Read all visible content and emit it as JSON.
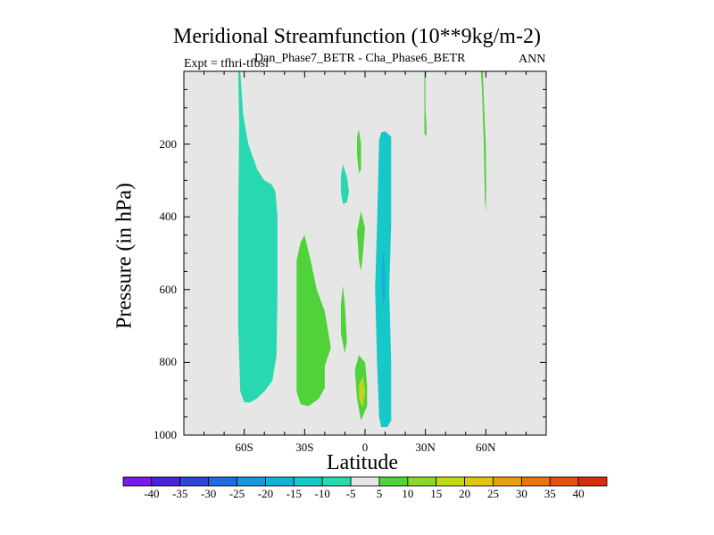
{
  "chart_data": {
    "type": "contour",
    "title": "Meridional Streamfunction (10**9kg/m-2)",
    "subtitle": "Dan_Phase7_BETR - Cha_Phase6_BETR",
    "expt_label": "Expt = tfhri-tfbsi",
    "season": "ANN",
    "xlabel": "Latitude",
    "ylabel": "Pressure (in hPa)",
    "xlim": [
      -90,
      90
    ],
    "ylim": [
      1000,
      0
    ],
    "x_ticks": [
      {
        "value": -60,
        "label": "60S"
      },
      {
        "value": -30,
        "label": "30S"
      },
      {
        "value": 0,
        "label": "0"
      },
      {
        "value": 30,
        "label": "30N"
      },
      {
        "value": 60,
        "label": "60N"
      }
    ],
    "y_ticks": [
      {
        "value": 200,
        "label": "200"
      },
      {
        "value": 400,
        "label": "400"
      },
      {
        "value": 600,
        "label": "600"
      },
      {
        "value": 800,
        "label": "800"
      },
      {
        "value": 1000,
        "label": "1000"
      }
    ],
    "background_color": "#e6e6e6",
    "colorbar": {
      "labels": [
        "-40",
        "-35",
        "-30",
        "-25",
        "-20",
        "-15",
        "-10",
        "-5",
        "5",
        "10",
        "15",
        "20",
        "25",
        "30",
        "35",
        "40"
      ],
      "colors": [
        "#7a18e8",
        "#4a22d8",
        "#2d46d6",
        "#1e6ce0",
        "#1796dc",
        "#12b2d8",
        "#16c8c8",
        "#28d8b0",
        "#e6e6e6",
        "#4fd23a",
        "#8ad82a",
        "#c2d61a",
        "#e0c410",
        "#e8a010",
        "#e8780e",
        "#e45010",
        "#d82e10"
      ]
    },
    "regions": [
      {
        "name": "sh-high-lat-cell",
        "color": "#28d8b0",
        "points": [
          [
            -62,
            0
          ],
          [
            -60.5,
            120
          ],
          [
            -58,
            200
          ],
          [
            -53.5,
            270
          ],
          [
            -50,
            300
          ],
          [
            -46.5,
            310
          ],
          [
            -44.5,
            330
          ],
          [
            -43.5,
            400
          ],
          [
            -43.5,
            600
          ],
          [
            -44,
            780
          ],
          [
            -46,
            850
          ],
          [
            -50,
            880
          ],
          [
            -54,
            900
          ],
          [
            -57,
            910
          ],
          [
            -60,
            910
          ],
          [
            -62,
            880
          ],
          [
            -63,
            700
          ],
          [
            -63,
            400
          ],
          [
            -62.5,
            150
          ],
          [
            -63,
            0
          ]
        ]
      },
      {
        "name": "sh-mid-lat-cell",
        "color": "#4fd23a",
        "points": [
          [
            -30,
            450
          ],
          [
            -27,
            520
          ],
          [
            -24,
            600
          ],
          [
            -20,
            660
          ],
          [
            -17,
            760
          ],
          [
            -20,
            810
          ],
          [
            -20,
            870
          ],
          [
            -23,
            900
          ],
          [
            -28,
            920
          ],
          [
            -32,
            915
          ],
          [
            -34,
            880
          ],
          [
            -34,
            700
          ],
          [
            -34,
            520
          ],
          [
            -32,
            470
          ]
        ]
      },
      {
        "name": "sh-subtropical-strip",
        "color": "#4fd23a",
        "points": [
          [
            -11,
            590
          ],
          [
            -10,
            640
          ],
          [
            -9,
            740
          ],
          [
            -10,
            775
          ],
          [
            -12,
            720
          ],
          [
            -12,
            640
          ]
        ]
      },
      {
        "name": "upper-tropical-cell-west",
        "color": "#28d8b0",
        "points": [
          [
            -11,
            255
          ],
          [
            -9,
            290
          ],
          [
            -8,
            330
          ],
          [
            -9,
            360
          ],
          [
            -11,
            365
          ],
          [
            -12,
            330
          ],
          [
            -12,
            290
          ]
        ]
      },
      {
        "name": "upper-tropical-cell-east",
        "color": "#4fd23a",
        "points": [
          [
            -3,
            160
          ],
          [
            -2,
            200
          ],
          [
            -2,
            270
          ],
          [
            -3,
            280
          ],
          [
            -4,
            230
          ],
          [
            -4,
            180
          ]
        ]
      },
      {
        "name": "mid-tropical-cell",
        "color": "#4fd23a",
        "points": [
          [
            -2,
            385
          ],
          [
            0,
            430
          ],
          [
            -1,
            500
          ],
          [
            -2,
            550
          ],
          [
            -3,
            520
          ],
          [
            -4,
            440
          ]
        ]
      },
      {
        "name": "near-surface-tropical-cell",
        "color": "#4fd23a",
        "points": [
          [
            -3,
            780
          ],
          [
            0,
            800
          ],
          [
            1,
            860
          ],
          [
            1,
            920
          ],
          [
            -2,
            960
          ],
          [
            -4,
            900
          ],
          [
            -5,
            820
          ]
        ]
      },
      {
        "name": "near-surface-core",
        "color": "#c2d61a",
        "points": [
          [
            -1,
            840
          ],
          [
            0,
            880
          ],
          [
            -1,
            925
          ],
          [
            -3,
            900
          ],
          [
            -3,
            860
          ]
        ]
      },
      {
        "name": "nh-tropical-cell",
        "color": "#16c8c8",
        "points": [
          [
            10,
            165
          ],
          [
            13,
            180
          ],
          [
            13,
            420
          ],
          [
            12,
            600
          ],
          [
            13,
            800
          ],
          [
            13,
            960
          ],
          [
            11,
            978
          ],
          [
            8,
            978
          ],
          [
            7,
            950
          ],
          [
            6,
            800
          ],
          [
            5,
            600
          ],
          [
            6,
            420
          ],
          [
            7,
            190
          ],
          [
            8,
            168
          ]
        ]
      },
      {
        "name": "nh-tropical-cell-core",
        "color": "#12b2d8",
        "points": [
          [
            9,
            490
          ],
          [
            10,
            560
          ],
          [
            10,
            620
          ],
          [
            9,
            640
          ],
          [
            8,
            570
          ]
        ]
      },
      {
        "name": "nh-subtropical-strip",
        "color": "#4fd23a",
        "points": [
          [
            30,
            0
          ],
          [
            30,
            100
          ],
          [
            30.5,
            150
          ],
          [
            30.5,
            180
          ],
          [
            29.5,
            170
          ],
          [
            29.5,
            100
          ],
          [
            29.5,
            0
          ]
        ]
      },
      {
        "name": "nh-polar-strip",
        "color": "#4fd23a",
        "points": [
          [
            58.5,
            0
          ],
          [
            59.2,
            100
          ],
          [
            60,
            200
          ],
          [
            60.2,
            320
          ],
          [
            60,
            390
          ],
          [
            59.5,
            350
          ],
          [
            59,
            200
          ],
          [
            58,
            40
          ],
          [
            57.5,
            0
          ]
        ]
      }
    ]
  }
}
